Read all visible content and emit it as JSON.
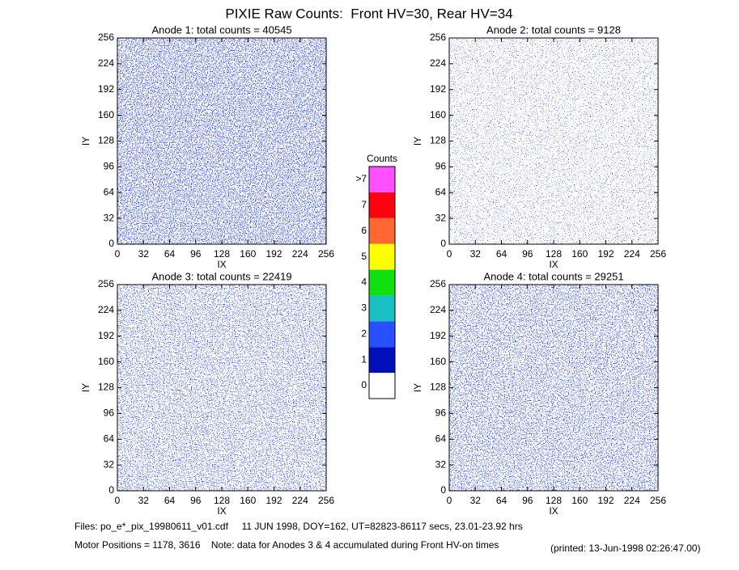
{
  "title": "PIXIE Raw Counts:  Front HV=30, Rear HV=34",
  "chart_data": [
    {
      "type": "heatmap",
      "title": "Anode 1: total counts = 40545",
      "xlabel": "IX",
      "ylabel": "IY",
      "xlim": [
        0,
        256
      ],
      "ylim": [
        0,
        256
      ],
      "xticks": [
        0,
        32,
        64,
        96,
        128,
        160,
        192,
        224,
        256
      ],
      "yticks": [
        0,
        32,
        64,
        96,
        128,
        160,
        192,
        224,
        256
      ]
    },
    {
      "type": "heatmap",
      "title": "Anode 2: total counts = 9128",
      "xlabel": "IX",
      "ylabel": "IY",
      "xlim": [
        0,
        256
      ],
      "ylim": [
        0,
        256
      ],
      "xticks": [
        0,
        32,
        64,
        96,
        128,
        160,
        192,
        224,
        256
      ],
      "yticks": [
        0,
        32,
        64,
        96,
        128,
        160,
        192,
        224,
        256
      ]
    },
    {
      "type": "heatmap",
      "title": "Anode 3: total counts = 22419",
      "xlabel": "IX",
      "ylabel": "IY",
      "xlim": [
        0,
        256
      ],
      "ylim": [
        0,
        256
      ],
      "xticks": [
        0,
        32,
        64,
        96,
        128,
        160,
        192,
        224,
        256
      ],
      "yticks": [
        0,
        32,
        64,
        96,
        128,
        160,
        192,
        224,
        256
      ]
    },
    {
      "type": "heatmap",
      "title": "Anode 4: total counts = 29251",
      "xlabel": "IX",
      "ylabel": "IY",
      "xlim": [
        0,
        256
      ],
      "ylim": [
        0,
        256
      ],
      "xticks": [
        0,
        32,
        64,
        96,
        128,
        160,
        192,
        224,
        256
      ],
      "yticks": [
        0,
        32,
        64,
        96,
        128,
        160,
        192,
        224,
        256
      ]
    }
  ],
  "colorbar": {
    "title": "Counts",
    "ticks": [
      0,
      1,
      2,
      3,
      4,
      5,
      6,
      7,
      {
        "value": 8,
        "label": ">7"
      }
    ],
    "colors": [
      "#ffffff",
      "#0010b8",
      "#2850ff",
      "#18c0c0",
      "#10e010",
      "#ffff00",
      "#ff6830",
      "#ff0010",
      "#ff50ff"
    ]
  },
  "footer": {
    "files": "Files: po_e*_pix_19980611_v01.cdf     11 JUN 1998, DOY=162, UT=82823-86117 secs, 23.01-23.92 hrs",
    "motor": "Motor Positions = 1178, 3616    Note: data for Anodes 3 & 4 accumulated during Front HV-on times",
    "printed": "(printed: 13-Jun-1998 02:26:47.00)"
  }
}
